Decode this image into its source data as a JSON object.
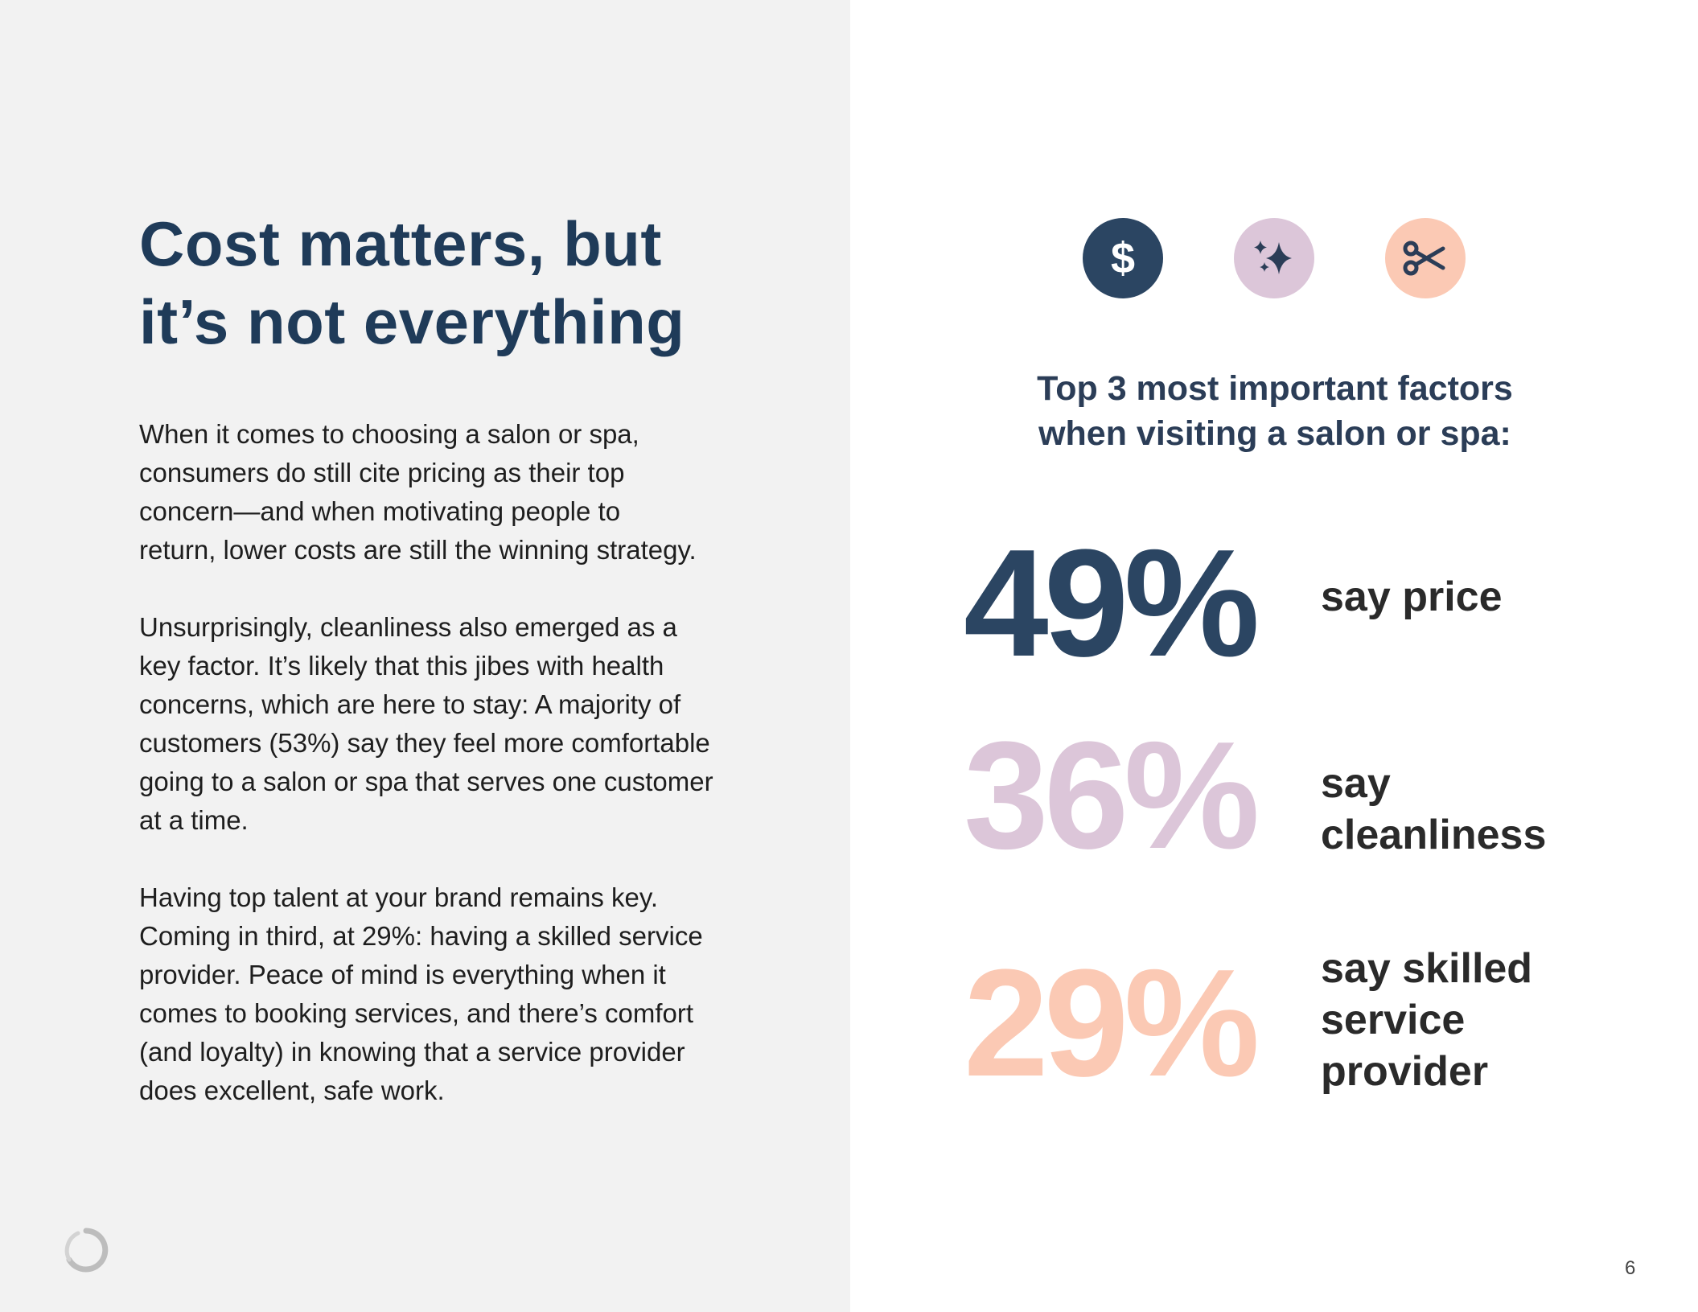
{
  "headline": {
    "lines": [
      "Cost matters, but",
      "it’s not everything"
    ]
  },
  "body": {
    "paragraphs": [
      {
        "lines": [
          "When it comes to choosing a salon or spa,",
          "consumers do still cite pricing as their top",
          "concern—and when motivating people to",
          "return, lower costs are still the winning strategy."
        ]
      },
      {
        "lines": [
          "Unsurprisingly, cleanliness also emerged as a",
          "key factor. It’s likely that this jibes with health",
          "concerns, which are here to stay: A majority of",
          "customers (53%) say they feel more comfortable",
          "going to a salon or spa that serves one customer",
          "at a time."
        ]
      },
      {
        "lines": [
          "Having top talent at your brand remains key.",
          "Coming in third, at 29%: having a skilled service",
          "provider. Peace of mind is everything when it",
          "comes to booking services, and there’s comfort",
          "(and loyalty) in knowing that a service provider",
          "does excellent, safe work."
        ]
      }
    ]
  },
  "icons": [
    {
      "name": "dollar-icon",
      "glyph": "$",
      "bg_color": "#2b4562",
      "fg_color": "#ffffff"
    },
    {
      "name": "sparkle-icon",
      "bg_color": "#dcc6d9",
      "fg_color": "#2b3d57"
    },
    {
      "name": "scissors-icon",
      "bg_color": "#fbc9b4",
      "fg_color": "#2b3d57"
    }
  ],
  "factors": {
    "title_lines": [
      "Top 3 most important factors",
      "when visiting a salon or spa:"
    ],
    "stats": [
      {
        "value": "49%",
        "label_lines": [
          "say price"
        ],
        "color": "#2b4562"
      },
      {
        "value": "36%",
        "label_lines": [
          "say",
          "cleanliness"
        ],
        "color": "#dcc6d9"
      },
      {
        "value": "29%",
        "label_lines": [
          "say skilled",
          "service",
          "provider"
        ],
        "color": "#fbc9b4"
      }
    ]
  },
  "footer": {
    "page_number": "6",
    "logo_color": "#bdbdbd"
  }
}
